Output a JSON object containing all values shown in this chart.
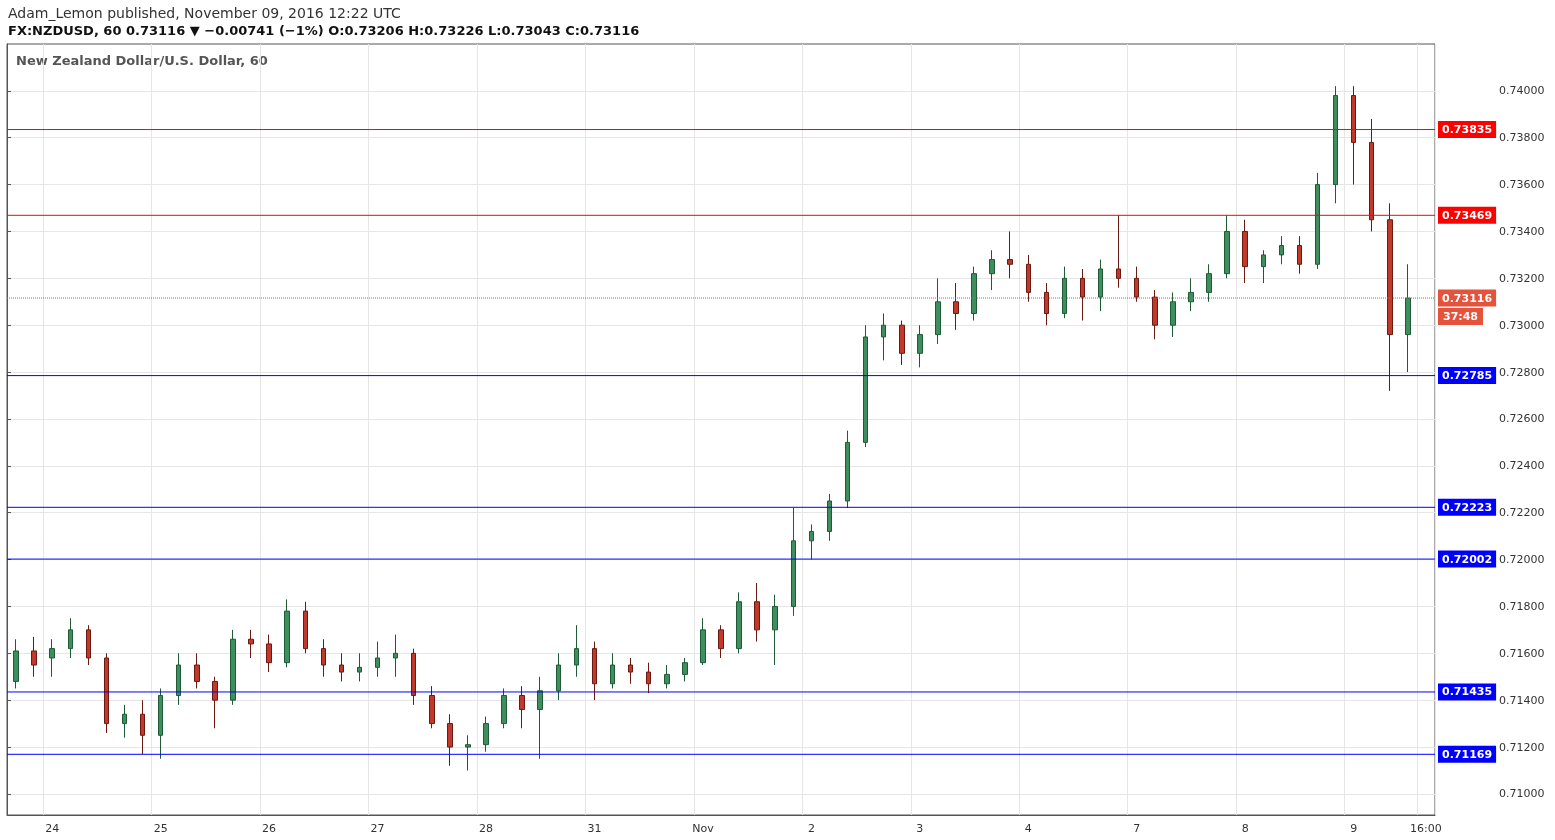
{
  "chart_data": {
    "type": "candlestick",
    "title": "FX:NZDUSD, 60 0.73116 ▼ −0.00741 (−1%) O:0.73206 H:0.73226 L:0.73043 C:0.73116",
    "subtitle": "New Zealand Dollar/U.S. Dollar, 60",
    "annotations": [
      "Adam_Lemon published, November 09, 2016 12:22 UTC",
      "37:48"
    ],
    "categories": [
      null,
      null,
      "24",
      null,
      null,
      null,
      null,
      null,
      "25",
      null,
      null,
      null,
      null,
      null,
      "26",
      null,
      null,
      null,
      null,
      null,
      "27",
      null,
      null,
      null,
      null,
      null,
      "28",
      null,
      null,
      null,
      null,
      null,
      "31",
      null,
      null,
      null,
      null,
      null,
      "Nov",
      null,
      null,
      null,
      null,
      null,
      "2",
      null,
      null,
      null,
      null,
      null,
      "3",
      null,
      null,
      null,
      null,
      null,
      "4",
      null,
      null,
      null,
      null,
      null,
      "7",
      null,
      null,
      null,
      null,
      null,
      "8",
      null,
      null,
      null,
      null,
      null,
      "9",
      null,
      null,
      null,
      "16:00"
    ],
    "ohlc": [
      [
        0.7148,
        0.7166,
        0.7145,
        0.7161
      ],
      [
        0.7161,
        0.7167,
        0.715,
        0.7155
      ],
      [
        0.7158,
        0.7166,
        0.715,
        0.7162
      ],
      [
        0.7162,
        0.7175,
        0.7158,
        0.717
      ],
      [
        0.717,
        0.7172,
        0.7155,
        0.7158
      ],
      [
        0.7158,
        0.716,
        0.7126,
        0.713
      ],
      [
        0.713,
        0.7138,
        0.7124,
        0.7134
      ],
      [
        0.7134,
        0.714,
        0.7117,
        0.7125
      ],
      [
        0.7125,
        0.7145,
        0.7115,
        0.7142
      ],
      [
        0.7142,
        0.716,
        0.7138,
        0.7155
      ],
      [
        0.7155,
        0.716,
        0.7145,
        0.7148
      ],
      [
        0.7148,
        0.715,
        0.7128,
        0.714
      ],
      [
        0.714,
        0.717,
        0.7138,
        0.7166
      ],
      [
        0.7166,
        0.717,
        0.7158,
        0.7164
      ],
      [
        0.7164,
        0.7168,
        0.7152,
        0.7156
      ],
      [
        0.7156,
        0.7183,
        0.7154,
        0.7178
      ],
      [
        0.7178,
        0.7182,
        0.716,
        0.7162
      ],
      [
        0.7162,
        0.7166,
        0.715,
        0.7155
      ],
      [
        0.7155,
        0.716,
        0.7148,
        0.7152
      ],
      [
        0.7152,
        0.716,
        0.7148,
        0.7154
      ],
      [
        0.7154,
        0.7165,
        0.715,
        0.7158
      ],
      [
        0.7158,
        0.7168,
        0.715,
        0.716
      ],
      [
        0.716,
        0.7162,
        0.7138,
        0.7142
      ],
      [
        0.7142,
        0.7146,
        0.7128,
        0.713
      ],
      [
        0.713,
        0.7134,
        0.7112,
        0.712
      ],
      [
        0.712,
        0.7125,
        0.711,
        0.7121
      ],
      [
        0.7121,
        0.7133,
        0.7118,
        0.713
      ],
      [
        0.713,
        0.7145,
        0.7128,
        0.7142
      ],
      [
        0.7142,
        0.7146,
        0.7128,
        0.7136
      ],
      [
        0.7136,
        0.715,
        0.7115,
        0.7144
      ],
      [
        0.7144,
        0.716,
        0.714,
        0.7155
      ],
      [
        0.7155,
        0.7172,
        0.715,
        0.7162
      ],
      [
        0.7162,
        0.7165,
        0.714,
        0.7147
      ],
      [
        0.7147,
        0.716,
        0.7145,
        0.7155
      ],
      [
        0.7155,
        0.7158,
        0.7147,
        0.7152
      ],
      [
        0.7152,
        0.7156,
        0.7143,
        0.7147
      ],
      [
        0.7147,
        0.7155,
        0.7145,
        0.7151
      ],
      [
        0.7151,
        0.7158,
        0.7148,
        0.7156
      ],
      [
        0.7156,
        0.7175,
        0.7155,
        0.717
      ],
      [
        0.717,
        0.7172,
        0.7158,
        0.7162
      ],
      [
        0.7162,
        0.7186,
        0.716,
        0.7182
      ],
      [
        0.7182,
        0.719,
        0.7165,
        0.717
      ],
      [
        0.717,
        0.7185,
        0.7155,
        0.718
      ],
      [
        0.718,
        0.7222,
        0.7176,
        0.7208
      ],
      [
        0.7208,
        0.7215,
        0.72,
        0.7212
      ],
      [
        0.7212,
        0.7228,
        0.7208,
        0.7225
      ],
      [
        0.7225,
        0.7255,
        0.7222,
        0.725
      ],
      [
        0.725,
        0.73,
        0.7248,
        0.7295
      ],
      [
        0.7295,
        0.7305,
        0.7285,
        0.73
      ],
      [
        0.73,
        0.7302,
        0.7283,
        0.7288
      ],
      [
        0.7288,
        0.73,
        0.7282,
        0.7296
      ],
      [
        0.7296,
        0.732,
        0.7292,
        0.731
      ],
      [
        0.731,
        0.7318,
        0.7298,
        0.7305
      ],
      [
        0.7305,
        0.7325,
        0.7302,
        0.7322
      ],
      [
        0.7322,
        0.7332,
        0.7315,
        0.7328
      ],
      [
        0.7328,
        0.734,
        0.732,
        0.7326
      ],
      [
        0.7326,
        0.733,
        0.731,
        0.7314
      ],
      [
        0.7314,
        0.7318,
        0.73,
        0.7305
      ],
      [
        0.7305,
        0.7325,
        0.7303,
        0.732
      ],
      [
        0.732,
        0.7324,
        0.7302,
        0.7312
      ],
      [
        0.7312,
        0.7328,
        0.7306,
        0.7324
      ],
      [
        0.7324,
        0.7347,
        0.7316,
        0.732
      ],
      [
        0.732,
        0.7325,
        0.731,
        0.7312
      ],
      [
        0.7312,
        0.7315,
        0.7294,
        0.73
      ],
      [
        0.73,
        0.7314,
        0.7295,
        0.731
      ],
      [
        0.731,
        0.732,
        0.7306,
        0.7314
      ],
      [
        0.7314,
        0.7326,
        0.731,
        0.7322
      ],
      [
        0.7322,
        0.7347,
        0.732,
        0.734
      ],
      [
        0.734,
        0.7345,
        0.7318,
        0.7325
      ],
      [
        0.7325,
        0.7332,
        0.7318,
        0.733
      ],
      [
        0.733,
        0.7338,
        0.7326,
        0.7334
      ],
      [
        0.7334,
        0.7338,
        0.7322,
        0.7326
      ],
      [
        0.7326,
        0.7365,
        0.7324,
        0.736
      ],
      [
        0.736,
        0.7402,
        0.7352,
        0.7398
      ],
      [
        0.7398,
        0.7402,
        0.736,
        0.7378
      ],
      [
        0.7378,
        0.7388,
        0.734,
        0.7345
      ],
      [
        0.7345,
        0.7352,
        0.7272,
        0.7296
      ],
      [
        0.7296,
        0.7326,
        0.728,
        0.73116
      ],
      null
    ],
    "ylim": [
      0.7091,
      0.742
    ],
    "yticks": [
      {
        "value": 0.71,
        "label": "0.71000"
      },
      {
        "value": 0.712,
        "label": "0.71200"
      },
      {
        "value": 0.714,
        "label": "0.71400"
      },
      {
        "value": 0.716,
        "label": "0.71600"
      },
      {
        "value": 0.718,
        "label": "0.71800"
      },
      {
        "value": 0.72,
        "label": "0.72000"
      },
      {
        "value": 0.722,
        "label": "0.72200"
      },
      {
        "value": 0.724,
        "label": "0.72400"
      },
      {
        "value": 0.726,
        "label": "0.72600"
      },
      {
        "value": 0.728,
        "label": "0.72800"
      },
      {
        "value": 0.73,
        "label": "0.73000"
      },
      {
        "value": 0.732,
        "label": "0.73200"
      },
      {
        "value": 0.734,
        "label": "0.73400"
      },
      {
        "value": 0.736,
        "label": "0.73600"
      },
      {
        "value": 0.738,
        "label": "0.73800"
      },
      {
        "value": 0.74,
        "label": "0.74000"
      }
    ],
    "ref_lines": [
      {
        "axis": "y",
        "value": 0.73835,
        "label": "0.73835",
        "color": "#ff0000"
      },
      {
        "axis": "y",
        "value": 0.73469,
        "label": "0.73469",
        "color": "#ff0000"
      },
      {
        "axis": "y",
        "value": 0.73116,
        "label": "0.73116",
        "color": "#e5533d",
        "line_style": "dotted"
      },
      {
        "axis": "y",
        "value": 0.72785,
        "label": "0.72785",
        "color": "#0000ff"
      },
      {
        "axis": "y",
        "value": 0.72223,
        "label": "0.72223",
        "color": "#0000ff"
      },
      {
        "axis": "y",
        "value": 0.72002,
        "label": "0.72002",
        "color": "#0000ff"
      },
      {
        "axis": "y",
        "value": 0.71435,
        "label": "0.71435",
        "color": "#0000ff"
      },
      {
        "axis": "y",
        "value": 0.71169,
        "label": "0.71169",
        "color": "#0000ff"
      }
    ],
    "grid": true
  }
}
